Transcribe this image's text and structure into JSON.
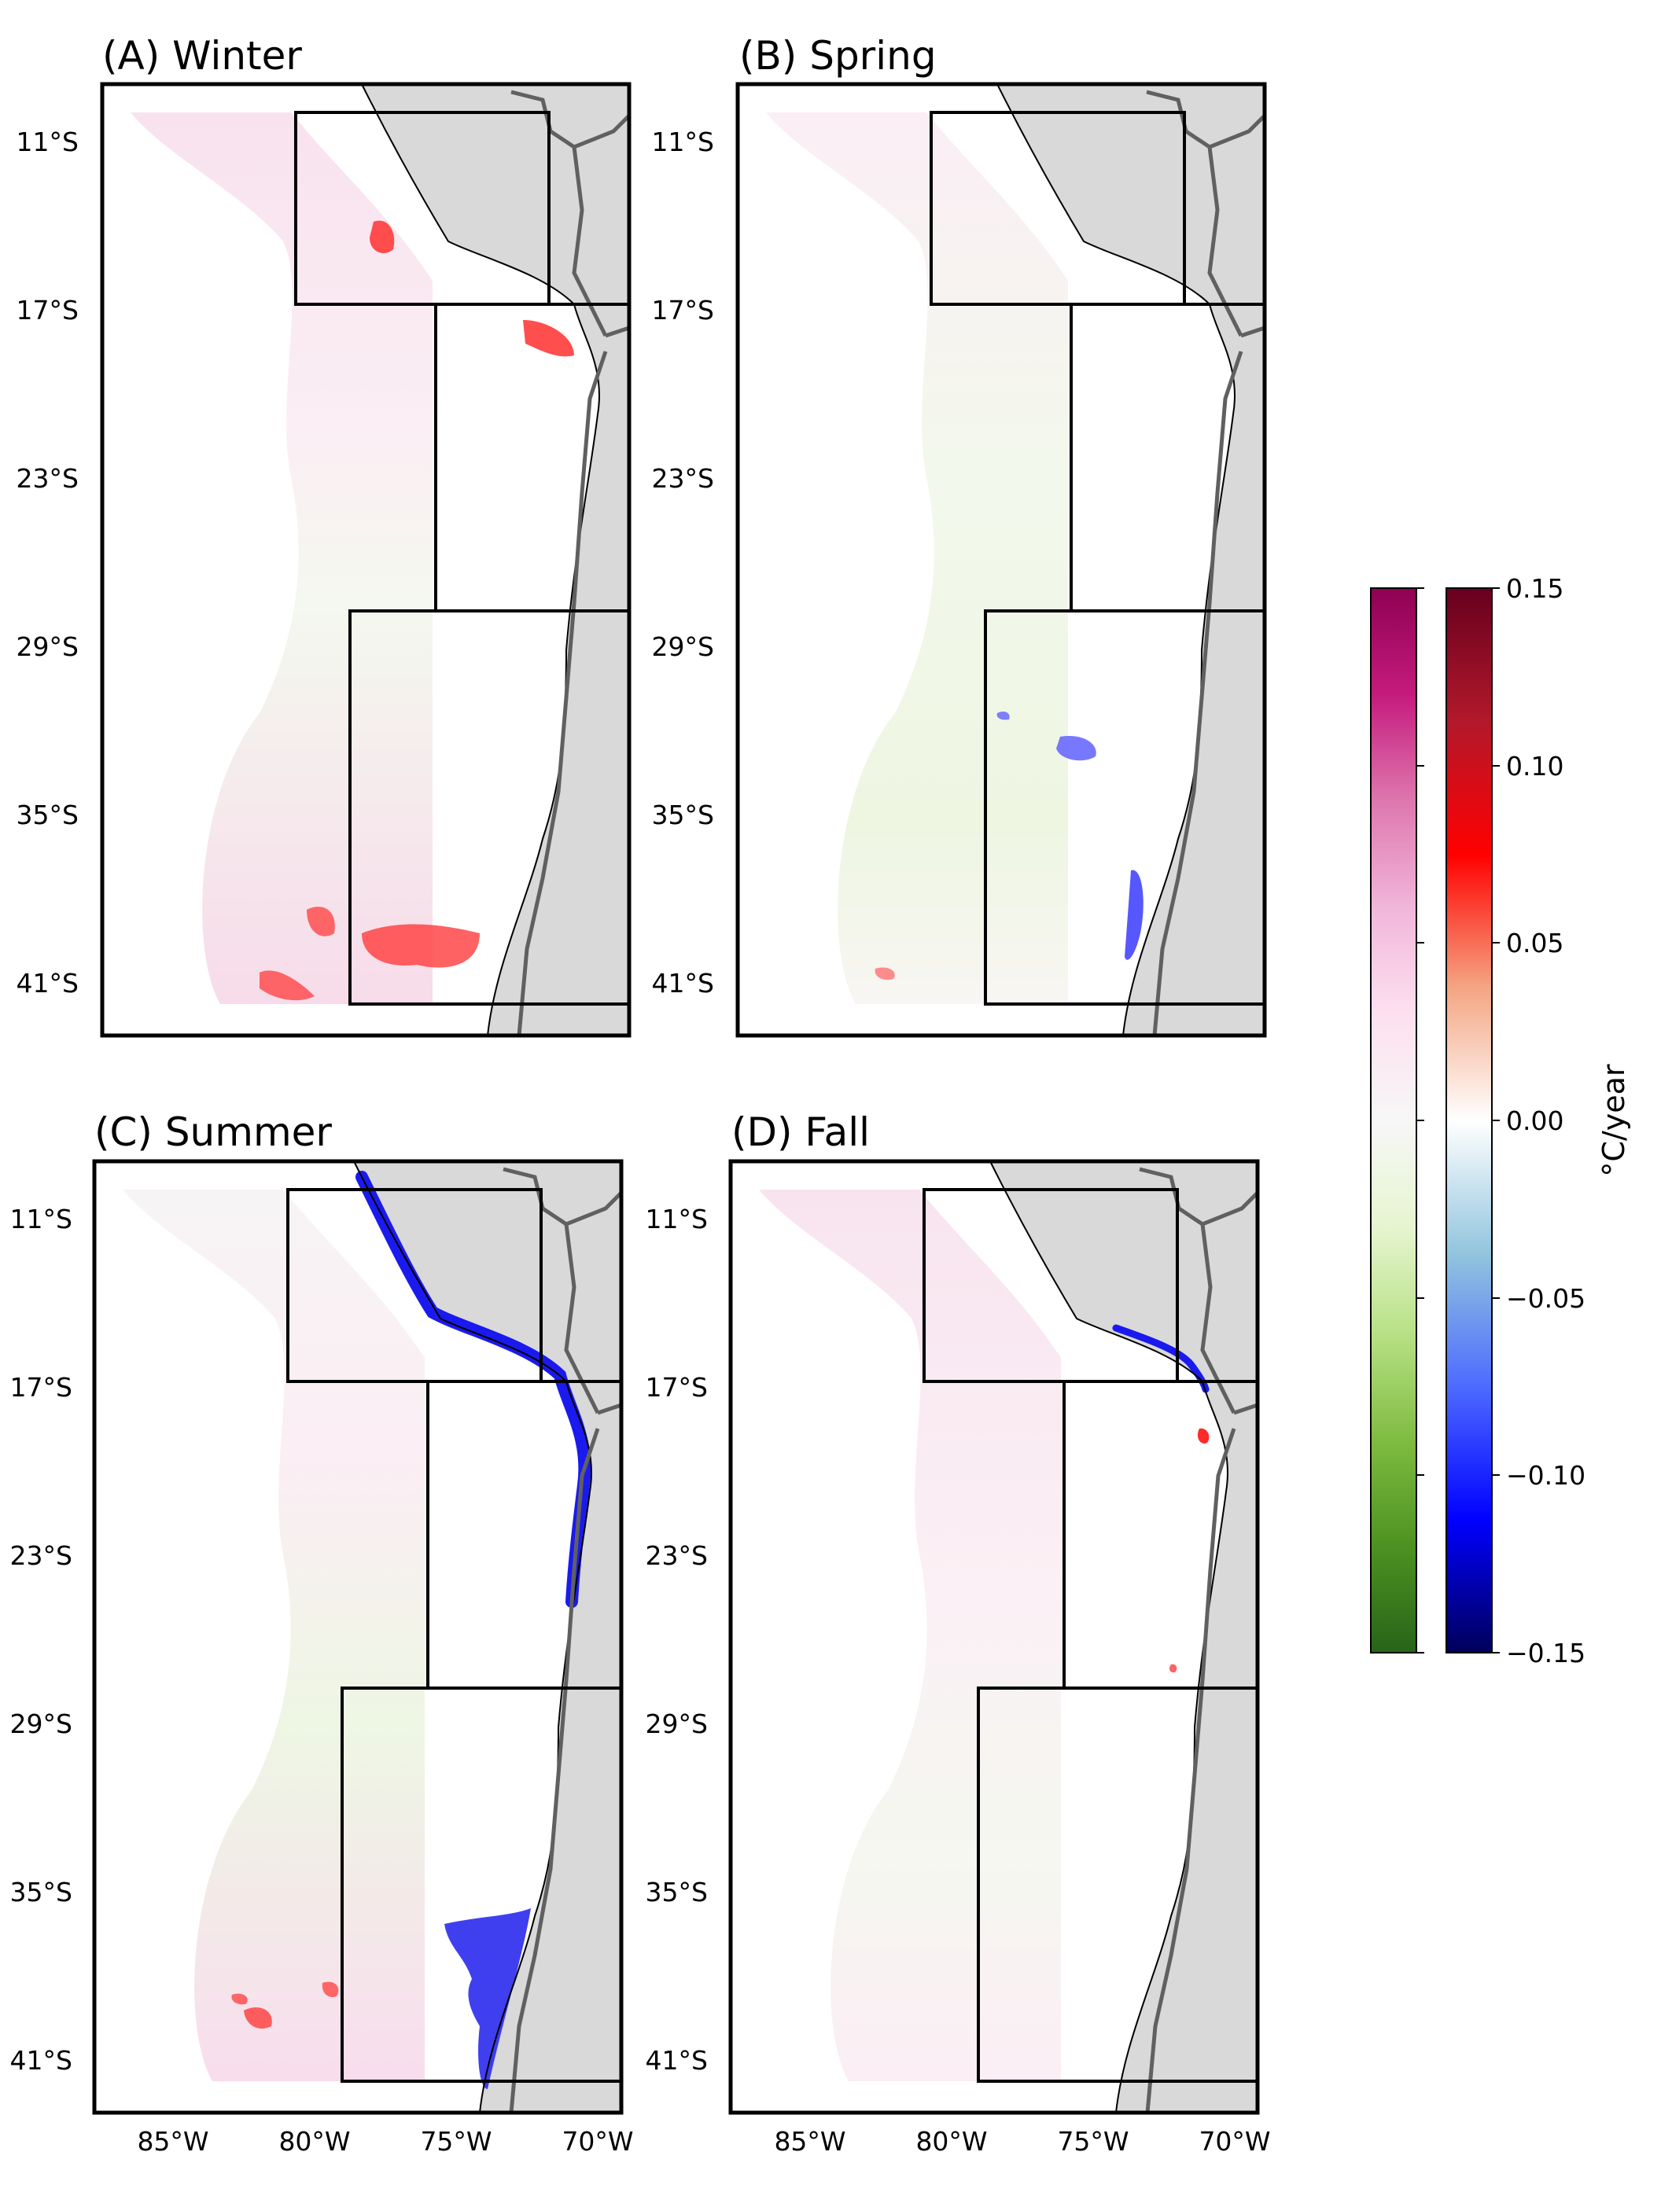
{
  "figure": {
    "panels": [
      {
        "title": "(A) Winter"
      },
      {
        "title": "(B) Spring"
      },
      {
        "title": "(C) Summer"
      },
      {
        "title": "(D) Fall"
      }
    ],
    "lat_ticks": [
      "11°S",
      "17°S",
      "23°S",
      "29°S",
      "35°S",
      "41°S"
    ],
    "lon_ticks": [
      "85°W",
      "80°W",
      "75°W",
      "70°W"
    ],
    "colorbar": {
      "title": "°C/year",
      "ticks": [
        "0.15",
        "0.10",
        "0.05",
        "0.00",
        "−0.05",
        "−0.10",
        "−0.15"
      ],
      "range": [
        -0.15,
        0.15
      ],
      "left_bar_colors": [
        "#8e0152",
        "#c51b7d",
        "#de77ae",
        "#f1b6da",
        "#fde0ef",
        "#f7f7f7",
        "#e6f5d0",
        "#b8e186",
        "#7fbc41",
        "#4d9221",
        "#276419"
      ],
      "right_bar_colors": [
        "#67001f",
        "#b2182b",
        "#ff0000",
        "#f4a582",
        "#ffffff",
        "#92c5de",
        "#4d6bff",
        "#0000ff",
        "#00005a"
      ]
    },
    "colors": {
      "land": "#d9d9d9",
      "border": "#606060",
      "coastline": "#000000",
      "warming": "#ff3b3b",
      "cooling": "#2a2aff",
      "pink_trend": "#f3c6df",
      "green_trend": "#e2f0cc"
    }
  }
}
